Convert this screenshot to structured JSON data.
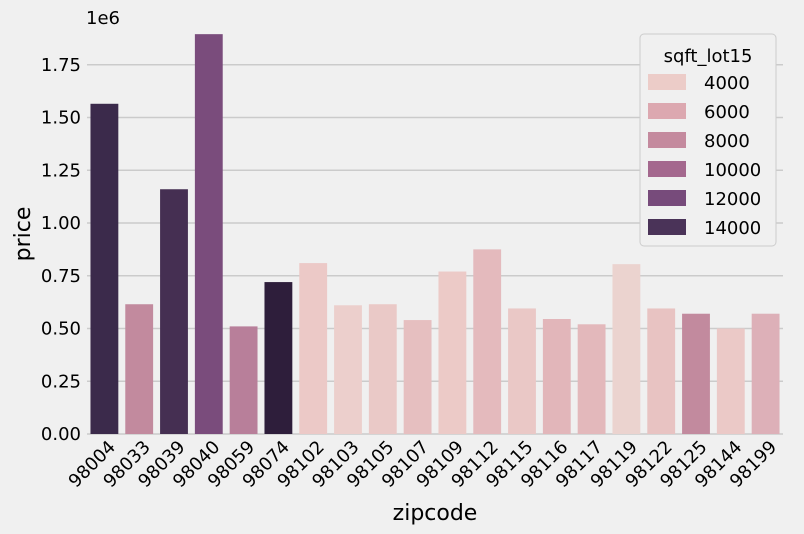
{
  "chart_data": {
    "type": "bar",
    "xlabel": "zipcode",
    "ylabel": "price",
    "offset_label": "1e6",
    "ylim": [
      0,
      2.0
    ],
    "yticks": [
      0.0,
      0.25,
      0.5,
      0.75,
      1.0,
      1.25,
      1.5,
      1.75
    ],
    "ytick_labels": [
      "0.00",
      "0.25",
      "0.50",
      "0.75",
      "1.00",
      "1.25",
      "1.50",
      "1.75"
    ],
    "grid": true,
    "categories": [
      "98004",
      "98033",
      "98039",
      "98040",
      "98059",
      "98074",
      "98102",
      "98103",
      "98105",
      "98107",
      "98109",
      "98112",
      "98115",
      "98116",
      "98117",
      "98119",
      "98122",
      "98125",
      "98144",
      "98199"
    ],
    "values": [
      1.565,
      0.615,
      1.16,
      1.895,
      0.51,
      0.72,
      0.81,
      0.61,
      0.615,
      0.54,
      0.77,
      0.875,
      0.595,
      0.545,
      0.52,
      0.805,
      0.595,
      0.57,
      0.5,
      0.57
    ],
    "hue_values": [
      14500,
      8000,
      13500,
      11500,
      8000,
      15500,
      4000,
      3800,
      4000,
      4800,
      4000,
      5000,
      4200,
      5300,
      5200,
      3500,
      4500,
      8000,
      4200,
      5800
    ],
    "colors": [
      "#3b2a4b",
      "#c28a9e",
      "#452f52",
      "#7a4c7c",
      "#b87f9a",
      "#2e1e3b",
      "#ecc9c7",
      "#eccfcc",
      "#eac9c7",
      "#e6bfc0",
      "#eccac7",
      "#e4babd",
      "#eac8c6",
      "#e2b6ba",
      "#e3b8bb",
      "#ebd3cf",
      "#e8c3c2",
      "#c28a9e",
      "#ebc9c7",
      "#ddb0b8"
    ],
    "legend": {
      "title": "sqft_lot15",
      "position": "top-right",
      "entries": [
        {
          "label": "4000",
          "color": "#ecccc8"
        },
        {
          "label": "6000",
          "color": "#dca8b0"
        },
        {
          "label": "8000",
          "color": "#c48a9e"
        },
        {
          "label": "10000",
          "color": "#a4688e"
        },
        {
          "label": "12000",
          "color": "#774b7b"
        },
        {
          "label": "14000",
          "color": "#4a3358"
        }
      ]
    }
  }
}
